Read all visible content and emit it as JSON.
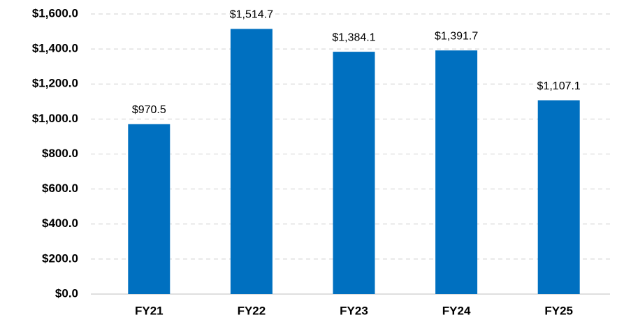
{
  "chart_data": {
    "type": "bar",
    "categories": [
      "FY21",
      "FY22",
      "FY23",
      "FY24",
      "FY25"
    ],
    "values": [
      970.5,
      1514.7,
      1384.1,
      1391.7,
      1107.1
    ],
    "value_labels": [
      "$970.5",
      "$1,514.7",
      "$1,384.1",
      "$1,391.7",
      "$1,107.1"
    ],
    "color": "#0070c0",
    "ylim": [
      0,
      1600
    ],
    "yticks": [
      {
        "value": 0,
        "label": "$0.0"
      },
      {
        "value": 200,
        "label": "$200.0"
      },
      {
        "value": 400,
        "label": "$400.0"
      },
      {
        "value": 600,
        "label": "$600.0"
      },
      {
        "value": 800,
        "label": "$800.0"
      },
      {
        "value": 1000,
        "label": "$1,000.0"
      },
      {
        "value": 1200,
        "label": "$1,200.0"
      },
      {
        "value": 1400,
        "label": "$1,400.0"
      },
      {
        "value": 1600,
        "label": "$1,600.0"
      }
    ],
    "grid": true
  }
}
